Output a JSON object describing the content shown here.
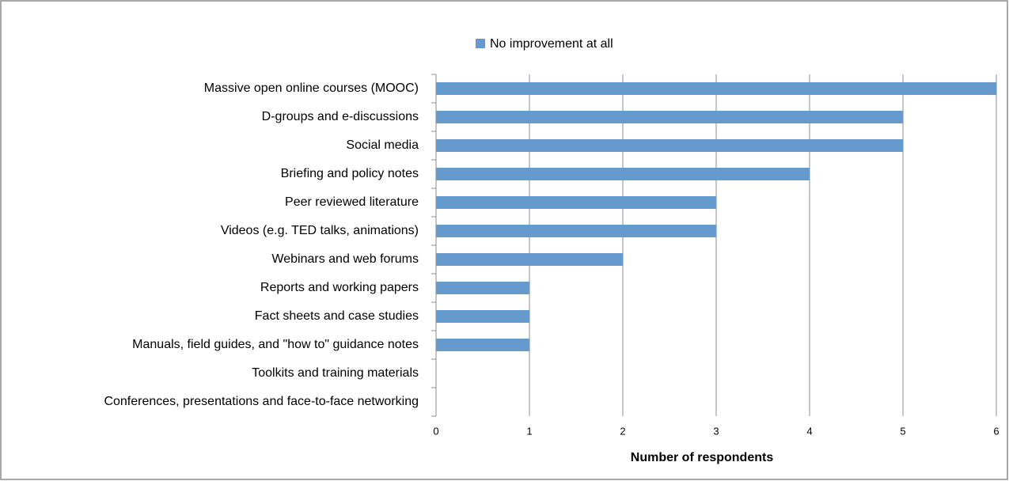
{
  "chart_data": {
    "type": "bar",
    "orientation": "horizontal",
    "x_axis_label": "Number of respondents",
    "categories": [
      "Massive open online courses (MOOC)",
      "D-groups and e-discussions",
      "Social media",
      "Briefing and policy notes",
      "Peer reviewed literature",
      "Videos (e.g. TED talks, animations)",
      "Webinars and web forums",
      "Reports and working papers",
      "Fact sheets and case studies",
      "Manuals, field guides, and \"how to\" guidance notes",
      "Toolkits and training materials",
      "Conferences, presentations and face-to-face networking"
    ],
    "series": [
      {
        "name": "No improvement at all",
        "color": "#6699cc",
        "values": [
          6,
          5,
          5,
          4,
          3,
          3,
          2,
          1,
          1,
          1,
          0,
          0
        ]
      }
    ],
    "xlim": [
      0,
      6
    ],
    "xticks": [
      0,
      1,
      2,
      3,
      4,
      5,
      6
    ],
    "grid": true,
    "legend": "top"
  }
}
